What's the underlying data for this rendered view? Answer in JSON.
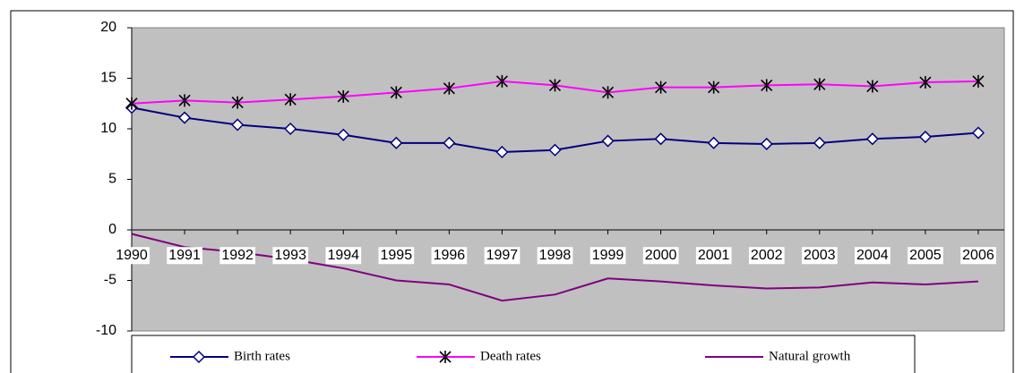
{
  "chart_data": {
    "type": "line",
    "categories": [
      "1990",
      "1991",
      "1992",
      "1993",
      "1994",
      "1995",
      "1996",
      "1997",
      "1998",
      "1999",
      "2000",
      "2001",
      "2002",
      "2003",
      "2004",
      "2005",
      "2006"
    ],
    "series": [
      {
        "name": "Birth rates",
        "color": "#000080",
        "marker": "diamond",
        "values": [
          12.1,
          11.1,
          10.4,
          10.0,
          9.4,
          8.6,
          8.6,
          7.7,
          7.9,
          8.8,
          9.0,
          8.6,
          8.5,
          8.6,
          9.0,
          9.2,
          9.6
        ]
      },
      {
        "name": "Death rates",
        "color": "#ff00ff",
        "marker": "star",
        "values": [
          12.5,
          12.8,
          12.6,
          12.9,
          13.2,
          13.6,
          14.0,
          14.7,
          14.3,
          13.6,
          14.1,
          14.1,
          14.3,
          14.4,
          14.2,
          14.6,
          14.7
        ]
      },
      {
        "name": "Natural growth",
        "color": "#800080",
        "marker": "none",
        "values": [
          -0.4,
          -1.7,
          -2.2,
          -2.9,
          -3.8,
          -5.0,
          -5.4,
          -7.0,
          -6.4,
          -4.8,
          -5.1,
          -5.5,
          -5.8,
          -5.7,
          -5.2,
          -5.4,
          -5.1
        ]
      }
    ],
    "ylim": [
      -10,
      20
    ],
    "yticks": [
      -10,
      -5,
      0,
      5,
      10,
      15,
      20
    ],
    "grid": false,
    "legend": "bottom"
  }
}
